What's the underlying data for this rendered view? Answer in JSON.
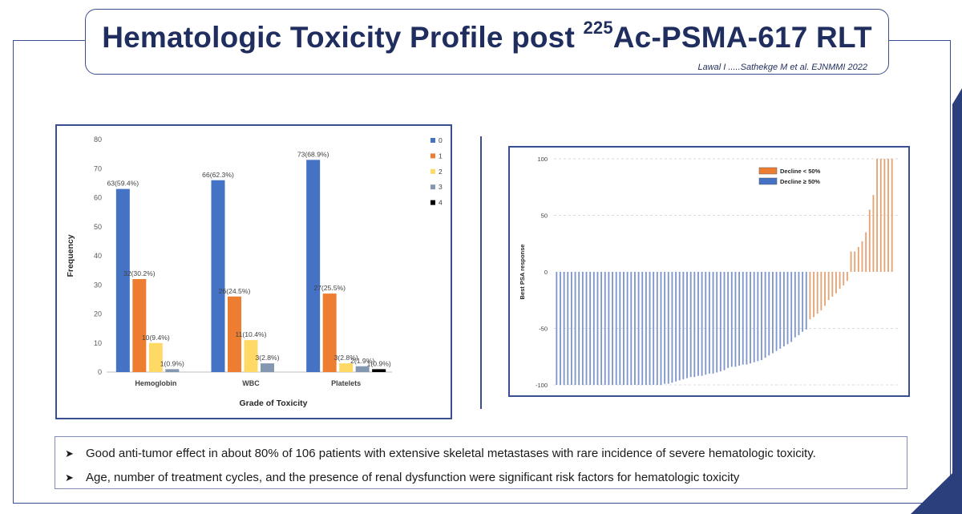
{
  "slide": {
    "title_main": "Hematologic Toxicity Profile post ",
    "title_sup": "225",
    "title_rest": "Ac-PSMA-617 RLT",
    "citation": "Lawal I .....Sathekge M et al. EJNMMI 2022",
    "accent_color": "#1f2e5e",
    "border_color": "#3a4f92"
  },
  "bullets": [
    {
      "arrow_icon": "arrow-bullet-icon",
      "text": "Good anti-tumor effect in about 80% of 106 patients with extensive skeletal metastases with rare incidence of severe hematologic toxicity."
    },
    {
      "arrow_icon": "arrow-bullet-icon",
      "text": "Age, number of treatment cycles, and the presence of renal dysfunction were significant risk factors for hematologic toxicity"
    }
  ],
  "chart_data": [
    {
      "type": "bar",
      "title": "",
      "xlabel": "Grade of Toxicity",
      "ylabel": "Frequency",
      "ylim": [
        0,
        80
      ],
      "yticks": [
        0,
        10,
        20,
        30,
        40,
        50,
        60,
        70,
        80
      ],
      "categories": [
        "Hemoglobin",
        "WBC",
        "Platelets"
      ],
      "legend_position": "right",
      "grid": false,
      "series": [
        {
          "name": "0",
          "color": "#4472c4",
          "values": [
            63,
            66,
            73
          ],
          "labels": [
            "63(59.4%)",
            "66(62.3%)",
            "73(68.9%)"
          ]
        },
        {
          "name": "1",
          "color": "#ed7d31",
          "values": [
            32,
            26,
            27
          ],
          "labels": [
            "32(30.2%)",
            "26(24.5%)",
            "27(25.5%)"
          ]
        },
        {
          "name": "2",
          "color": "#ffd966",
          "values": [
            10,
            11,
            3
          ],
          "labels": [
            "10(9.4%)",
            "11(10.4%)",
            "3(2.8%)"
          ]
        },
        {
          "name": "3",
          "color": "#8497b0",
          "values": [
            1,
            3,
            2
          ],
          "labels": [
            "1(0.9%)",
            "3(2.8%)",
            "2(1.9%)"
          ]
        },
        {
          "name": "4",
          "color": "#000000",
          "values": [
            0,
            0,
            1
          ],
          "labels": [
            "",
            "",
            "1(0.9%)"
          ]
        }
      ]
    },
    {
      "type": "bar",
      "subtype": "waterfall",
      "title": "",
      "xlabel": "",
      "ylabel": "Best PSA response",
      "ylim": [
        -100,
        100
      ],
      "yticks": [
        -100,
        -50,
        0,
        50,
        100
      ],
      "grid": true,
      "legend_position": "top-right",
      "series": [
        {
          "name": "Decline < 50%",
          "color": "#e3a576"
        },
        {
          "name": "Decline ≥ 50%",
          "color": "#7f97cc"
        }
      ],
      "values": [
        -100,
        -100,
        -100,
        -100,
        -100,
        -100,
        -100,
        -100,
        -100,
        -100,
        -100,
        -100,
        -100,
        -100,
        -100,
        -100,
        -100,
        -100,
        -100,
        -100,
        -100,
        -100,
        -100,
        -100,
        -100,
        -100,
        -100,
        -100,
        -100,
        -99,
        -99,
        -98,
        -97,
        -96,
        -95,
        -94,
        -93,
        -93,
        -92,
        -92,
        -91,
        -90,
        -90,
        -89,
        -88,
        -87,
        -85,
        -84,
        -84,
        -83,
        -82,
        -82,
        -81,
        -80,
        -79,
        -78,
        -76,
        -74,
        -72,
        -70,
        -68,
        -66,
        -64,
        -62,
        -58,
        -56,
        -53,
        -51,
        -42,
        -40,
        -37,
        -34,
        -30,
        -25,
        -22,
        -19,
        -15,
        -12,
        -8,
        18,
        18,
        22,
        27,
        35,
        55,
        68,
        100,
        100,
        100,
        100,
        100
      ]
    }
  ]
}
